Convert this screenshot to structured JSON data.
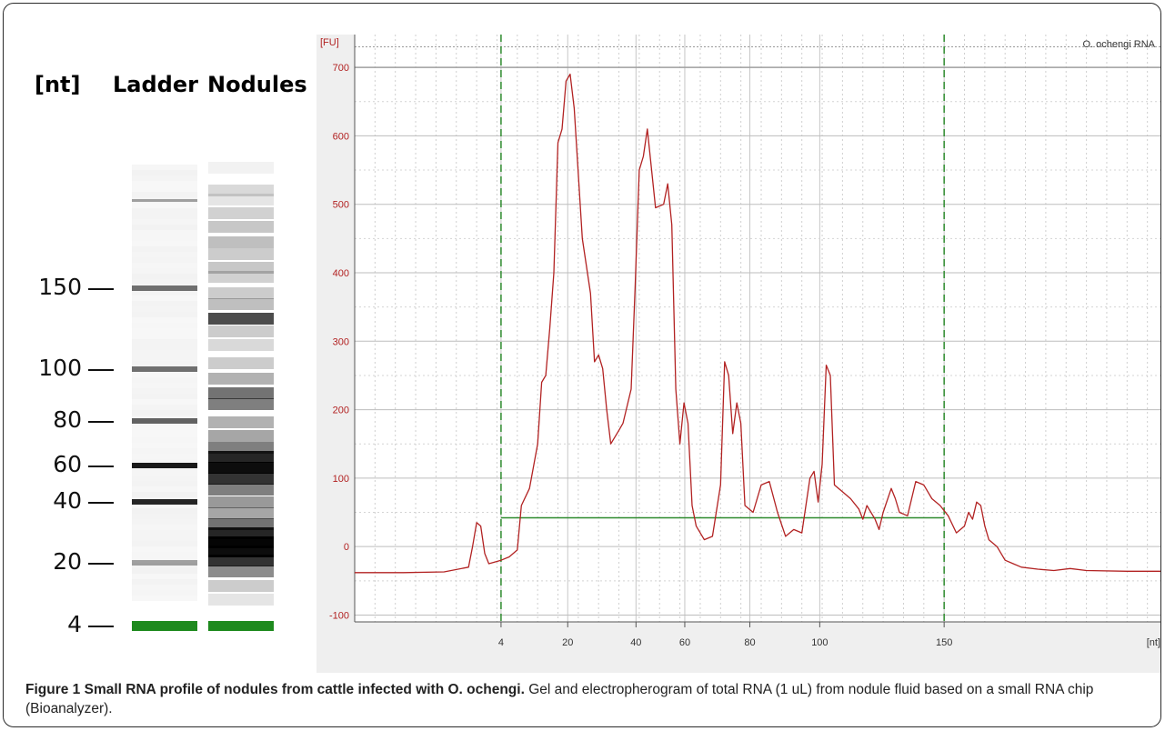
{
  "gel": {
    "unit_label": "[nt]",
    "lane_labels": [
      "Ladder",
      "Nodules"
    ],
    "marker_labels": [
      "150",
      "100",
      "80",
      "60",
      "40",
      "20",
      "4"
    ],
    "ladder_bands": [
      {
        "nt": 150,
        "intensity": 0.55
      },
      {
        "nt": 100,
        "intensity": 0.55
      },
      {
        "nt": 80,
        "intensity": 0.6
      },
      {
        "nt": 60,
        "intensity": 0.9
      },
      {
        "nt": 40,
        "intensity": 0.85
      },
      {
        "nt": 20,
        "intensity": 0.35
      },
      {
        "nt": 4,
        "intensity": 1.0,
        "color": "#1e8a1e"
      }
    ],
    "marker_color": "#1e8a1e"
  },
  "chart_data": {
    "type": "line",
    "title": "O. ochengi RNA",
    "ylabel": "[FU]",
    "xlabel": "[nt]",
    "ylim": [
      -110,
      740
    ],
    "yticks": [
      -100,
      0,
      100,
      200,
      300,
      400,
      500,
      600,
      700
    ],
    "xtick_labels": [
      "4",
      "20",
      "40",
      "60",
      "80",
      "100",
      "150"
    ],
    "grid": true,
    "series": [
      {
        "color": "#b22222",
        "points": [
          [
            0.0,
            -38
          ],
          [
            0.06,
            -38
          ],
          [
            0.11,
            -37
          ],
          [
            0.14,
            -30
          ],
          [
            0.145,
            0
          ],
          [
            0.15,
            35
          ],
          [
            0.155,
            30
          ],
          [
            0.16,
            -10
          ],
          [
            0.165,
            -25
          ],
          [
            0.18,
            -20
          ],
          [
            0.19,
            -15
          ],
          [
            0.2,
            -5
          ],
          [
            0.205,
            60
          ],
          [
            0.215,
            85
          ],
          [
            0.225,
            150
          ],
          [
            0.23,
            240
          ],
          [
            0.235,
            250
          ],
          [
            0.24,
            320
          ],
          [
            0.245,
            400
          ],
          [
            0.25,
            590
          ],
          [
            0.255,
            610
          ],
          [
            0.26,
            680
          ],
          [
            0.265,
            690
          ],
          [
            0.27,
            640
          ],
          [
            0.28,
            450
          ],
          [
            0.29,
            370
          ],
          [
            0.295,
            270
          ],
          [
            0.3,
            280
          ],
          [
            0.305,
            260
          ],
          [
            0.31,
            200
          ],
          [
            0.315,
            150
          ],
          [
            0.325,
            170
          ],
          [
            0.33,
            180
          ],
          [
            0.34,
            230
          ],
          [
            0.345,
            380
          ],
          [
            0.35,
            550
          ],
          [
            0.355,
            570
          ],
          [
            0.36,
            610
          ],
          [
            0.37,
            495
          ],
          [
            0.38,
            500
          ],
          [
            0.385,
            530
          ],
          [
            0.39,
            470
          ],
          [
            0.395,
            230
          ],
          [
            0.4,
            150
          ],
          [
            0.405,
            210
          ],
          [
            0.41,
            180
          ],
          [
            0.415,
            60
          ],
          [
            0.42,
            30
          ],
          [
            0.43,
            10
          ],
          [
            0.44,
            15
          ],
          [
            0.45,
            90
          ],
          [
            0.455,
            270
          ],
          [
            0.46,
            250
          ],
          [
            0.465,
            165
          ],
          [
            0.47,
            210
          ],
          [
            0.475,
            180
          ],
          [
            0.48,
            60
          ],
          [
            0.49,
            50
          ],
          [
            0.5,
            90
          ],
          [
            0.51,
            95
          ],
          [
            0.52,
            50
          ],
          [
            0.53,
            15
          ],
          [
            0.54,
            25
          ],
          [
            0.55,
            20
          ],
          [
            0.56,
            100
          ],
          [
            0.565,
            110
          ],
          [
            0.57,
            65
          ],
          [
            0.575,
            120
          ],
          [
            0.58,
            265
          ],
          [
            0.585,
            250
          ],
          [
            0.59,
            90
          ],
          [
            0.6,
            80
          ],
          [
            0.61,
            70
          ],
          [
            0.62,
            55
          ],
          [
            0.625,
            40
          ],
          [
            0.63,
            60
          ],
          [
            0.64,
            40
          ],
          [
            0.645,
            25
          ],
          [
            0.65,
            50
          ],
          [
            0.66,
            85
          ],
          [
            0.665,
            70
          ],
          [
            0.67,
            50
          ],
          [
            0.68,
            45
          ],
          [
            0.69,
            95
          ],
          [
            0.7,
            90
          ],
          [
            0.71,
            70
          ],
          [
            0.72,
            60
          ],
          [
            0.73,
            45
          ],
          [
            0.74,
            20
          ],
          [
            0.75,
            30
          ],
          [
            0.755,
            50
          ],
          [
            0.76,
            40
          ],
          [
            0.765,
            65
          ],
          [
            0.77,
            60
          ],
          [
            0.775,
            30
          ],
          [
            0.78,
            10
          ],
          [
            0.79,
            0
          ],
          [
            0.8,
            -20
          ],
          [
            0.81,
            -25
          ],
          [
            0.82,
            -30
          ],
          [
            0.84,
            -33
          ],
          [
            0.86,
            -35
          ],
          [
            0.88,
            -32
          ],
          [
            0.9,
            -35
          ],
          [
            0.95,
            -36
          ],
          [
            1.0,
            -36
          ]
        ]
      }
    ],
    "baseline": {
      "color": "#2e8b2e",
      "y": 42
    },
    "region_markers": {
      "color": "#2e8b2e",
      "at": [
        "4",
        "150"
      ]
    }
  },
  "caption": {
    "fig_label": "Figure 1",
    "title": "Small RNA profile of nodules from cattle infected with O. ochengi.",
    "text": "Gel and electropherogram of total RNA (1 uL) from nodule fluid based on a small RNA chip (Bioanalyzer)."
  }
}
